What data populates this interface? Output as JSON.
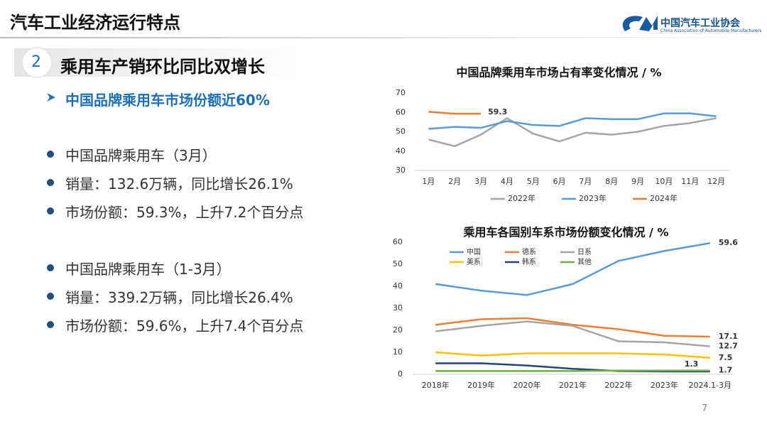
{
  "header": {
    "title": "汽车工业经济运行特点",
    "org_name": "中国汽车工业协会",
    "org_name_en": "China Association of Automobile Manufacturers"
  },
  "section": {
    "number": "2",
    "title": "乘用车产销环比同比双增长",
    "subtitle": "中国品牌乘用车市场份额近60%"
  },
  "bullets": [
    [
      "中国品牌乘用车（3月）",
      "销量：132.6万辆，同比增长26.1%",
      "市场份额：59.3%，上升7.2个百分点"
    ],
    [
      "中国品牌乘用车（1-3月）",
      "销量：339.2万辆，同比增长26.4%",
      "市场份额：59.6%，上升7.4个百分点"
    ]
  ],
  "page_number": "7",
  "chart_data": [
    {
      "type": "line",
      "title": "中国品牌乘用车市场占有率变化情况 / %",
      "categories": [
        "1月",
        "2月",
        "3月",
        "4月",
        "5月",
        "6月",
        "7月",
        "8月",
        "9月",
        "10月",
        "11月",
        "12月"
      ],
      "ylim": [
        30,
        70
      ],
      "yticks": [
        30,
        40,
        50,
        60,
        70
      ],
      "grid": false,
      "legend": "bottom",
      "series": [
        {
          "name": "2022年",
          "color": "#a5a5a5",
          "values": [
            46,
            42.5,
            48.5,
            57,
            49,
            45,
            49.5,
            48.5,
            50,
            53,
            54.5,
            57
          ]
        },
        {
          "name": "2023年",
          "color": "#5b9bd5",
          "values": [
            51.5,
            52.5,
            52,
            55.5,
            53.5,
            53,
            57,
            56.5,
            56.5,
            59.5,
            59.5,
            58
          ]
        },
        {
          "name": "2024年",
          "color": "#ed7d31",
          "values": [
            60.3,
            59.3,
            59.3,
            null,
            null,
            null,
            null,
            null,
            null,
            null,
            null,
            null
          ],
          "value_labels": [
            null,
            null,
            "59.3",
            null,
            null,
            null,
            null,
            null,
            null,
            null,
            null,
            null
          ]
        }
      ]
    },
    {
      "type": "line",
      "title": "乘用车各国别车系市场份额变化情况 / %",
      "categories": [
        "2018年",
        "2019年",
        "2020年",
        "2021年",
        "2022年",
        "2023年",
        "2024.1-3月"
      ],
      "ylim": [
        0,
        60
      ],
      "yticks": [
        0,
        10,
        20,
        30,
        40,
        50,
        60
      ],
      "grid": false,
      "legend": "upper left",
      "series": [
        {
          "name": "中国",
          "color": "#5b9bd5",
          "values": [
            41,
            38,
            36,
            41,
            51.5,
            56,
            59.6
          ],
          "value_labels": [
            null,
            null,
            null,
            null,
            null,
            null,
            "59.6"
          ]
        },
        {
          "name": "德系",
          "color": "#ed7d31",
          "values": [
            22.5,
            25,
            25.5,
            22.5,
            20.5,
            17.5,
            17.1
          ],
          "value_labels": [
            null,
            null,
            null,
            null,
            null,
            null,
            "17.1"
          ]
        },
        {
          "name": "日系",
          "color": "#a5a5a5",
          "values": [
            19.5,
            22,
            24,
            22,
            15,
            14.5,
            12.7
          ],
          "value_labels": [
            null,
            null,
            null,
            null,
            null,
            null,
            "12.7"
          ]
        },
        {
          "name": "美系",
          "color": "#ffc000",
          "values": [
            10,
            8.5,
            9.5,
            9.5,
            9.5,
            9,
            7.5
          ],
          "value_labels": [
            null,
            null,
            null,
            null,
            null,
            null,
            "7.5"
          ]
        },
        {
          "name": "韩系",
          "color": "#264478",
          "values": [
            5,
            5,
            4,
            2.5,
            1.5,
            1.3,
            1.3
          ],
          "value_labels": [
            null,
            null,
            null,
            null,
            null,
            null,
            "1.3"
          ]
        },
        {
          "name": "其他",
          "color": "#70ad47",
          "values": [
            1.5,
            1.5,
            1.5,
            1.5,
            1.7,
            1.7,
            1.7
          ],
          "value_labels": [
            null,
            null,
            null,
            null,
            null,
            null,
            "1.7"
          ]
        }
      ]
    }
  ]
}
